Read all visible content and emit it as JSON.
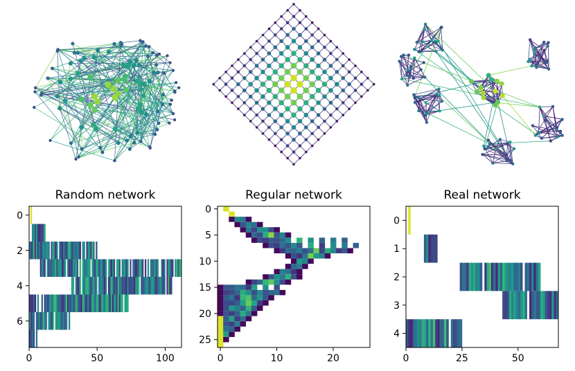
{
  "colors": {
    "viridis": [
      "#440154",
      "#482878",
      "#3e4989",
      "#31688e",
      "#26828e",
      "#1f9e89",
      "#35b779",
      "#6ece58",
      "#b5de2b",
      "#fde725"
    ],
    "axis": "#000000",
    "background": "#ffffff"
  },
  "chart_data": [
    {
      "type": "network",
      "title": "",
      "description_kind": "random",
      "nodes_colored_by": "viridis",
      "n_nodes": 110
    },
    {
      "type": "network",
      "title": "",
      "description_kind": "regular lattice",
      "lattice_size": 14,
      "nodes_colored_by": "viridis"
    },
    {
      "type": "network",
      "title": "",
      "description_kind": "real (clustered)",
      "n_clusters": 7,
      "nodes_colored_by": "viridis"
    },
    {
      "type": "heatmap",
      "title": "Random network",
      "xlim": [
        0,
        112
      ],
      "ylim": [
        7.5,
        -0.5
      ],
      "xticks": [
        0,
        50,
        100
      ],
      "yticks": [
        0,
        2,
        4,
        6
      ],
      "row_ranges": [
        {
          "row": 0,
          "start": 0,
          "end": 3
        },
        {
          "row": 1,
          "start": 0,
          "end": 12
        },
        {
          "row": 2,
          "start": 0,
          "end": 50
        },
        {
          "row": 3,
          "start": 8,
          "end": 112
        },
        {
          "row": 4,
          "start": 30,
          "end": 105
        },
        {
          "row": 5,
          "start": 0,
          "end": 73
        },
        {
          "row": 6,
          "start": 0,
          "end": 31
        },
        {
          "row": 7,
          "start": 0,
          "end": 6
        }
      ]
    },
    {
      "type": "heatmap",
      "title": "Regular network",
      "xlim": [
        -0.5,
        26.5
      ],
      "ylim": [
        26.5,
        -0.5
      ],
      "xticks": [
        0,
        10,
        20
      ],
      "yticks": [
        0,
        5,
        10,
        15,
        20,
        25
      ],
      "row_ranges": [
        {
          "row": 0,
          "start": 1,
          "end": 2
        },
        {
          "row": 1,
          "start": 2,
          "end": 3
        },
        {
          "row": 2,
          "start": 2,
          "end": 6
        },
        {
          "row": 3,
          "start": 3,
          "end": 8
        },
        {
          "row": 4,
          "start": 4,
          "end": 11
        },
        {
          "row": 5,
          "start": 5,
          "end": 13
        },
        {
          "row": 6,
          "start": 6,
          "end": 24
        },
        {
          "row": 7,
          "start": 8,
          "end": 26
        },
        {
          "row": 8,
          "start": 10,
          "end": 24
        },
        {
          "row": 9,
          "start": 12,
          "end": 20
        },
        {
          "row": 10,
          "start": 13,
          "end": 17
        },
        {
          "row": 11,
          "start": 12,
          "end": 16
        },
        {
          "row": 12,
          "start": 10,
          "end": 15
        },
        {
          "row": 13,
          "start": 8,
          "end": 15
        },
        {
          "row": 14,
          "start": 5,
          "end": 13
        },
        {
          "row": 15,
          "start": 0,
          "end": 12
        },
        {
          "row": 16,
          "start": 0,
          "end": 12
        },
        {
          "row": 17,
          "start": 0,
          "end": 10
        },
        {
          "row": 18,
          "start": 0,
          "end": 9
        },
        {
          "row": 19,
          "start": 0,
          "end": 8
        },
        {
          "row": 20,
          "start": 0,
          "end": 7
        },
        {
          "row": 21,
          "start": 0,
          "end": 6
        },
        {
          "row": 22,
          "start": 0,
          "end": 5
        },
        {
          "row": 23,
          "start": 0,
          "end": 4
        },
        {
          "row": 24,
          "start": 0,
          "end": 3
        },
        {
          "row": 25,
          "start": 0,
          "end": 2
        },
        {
          "row": 26,
          "start": 0,
          "end": 1
        }
      ]
    },
    {
      "type": "heatmap",
      "title": "Real network",
      "xlim": [
        0,
        68
      ],
      "ylim": [
        4.5,
        -0.5
      ],
      "xticks": [
        0,
        25,
        50
      ],
      "yticks": [
        0,
        1,
        2,
        3,
        4
      ],
      "row_ranges": [
        {
          "row": 0,
          "start": 1,
          "end": 2
        },
        {
          "row": 1,
          "start": 8,
          "end": 14
        },
        {
          "row": 2,
          "start": 24,
          "end": 60
        },
        {
          "row": 3,
          "start": 43,
          "end": 68
        },
        {
          "row": 4,
          "start": 0,
          "end": 25
        }
      ]
    }
  ]
}
